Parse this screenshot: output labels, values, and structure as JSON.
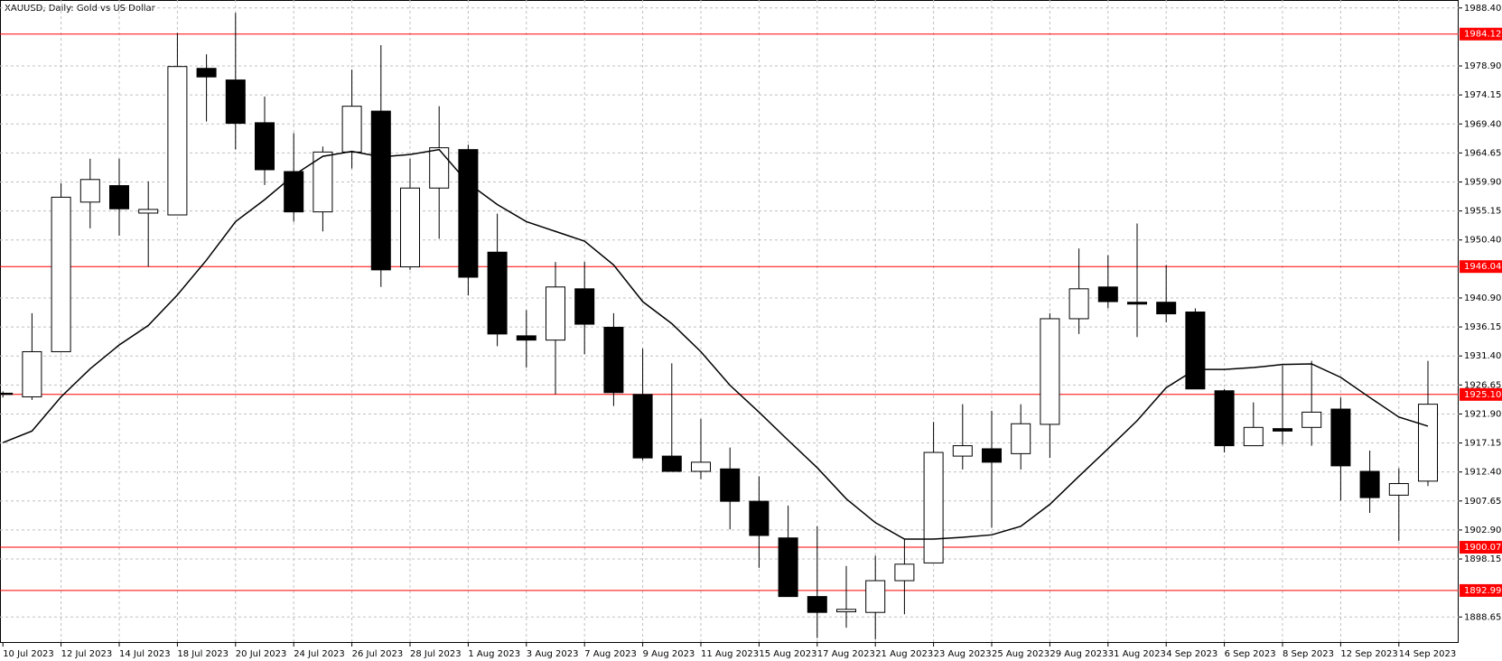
{
  "chart_data": {
    "type": "candlestick",
    "title": "XAUUSD, Daily:  Gold vs US Dollar",
    "categories": [
      "10 Jul 2023",
      null,
      "12 Jul 2023",
      null,
      "14 Jul 2023",
      null,
      "18 Jul 2023",
      null,
      "20 Jul 2023",
      null,
      "24 Jul 2023",
      null,
      "26 Jul 2023",
      null,
      "28 Jul 2023",
      null,
      "1 Aug 2023",
      null,
      "3 Aug 2023",
      null,
      "7 Aug 2023",
      null,
      "9 Aug 2023",
      null,
      "11 Aug 2023",
      null,
      "15 Aug 2023",
      null,
      "17 Aug 2023",
      null,
      "21 Aug 2023",
      null,
      "23 Aug 2023",
      null,
      "25 Aug 2023",
      null,
      "29 Aug 2023",
      null,
      "31 Aug 2023",
      null,
      "4 Sep 2023",
      null,
      "6 Sep 2023",
      null,
      "8 Sep 2023",
      null,
      "12 Sep 2023",
      null,
      "14 Sep 2023",
      null
    ],
    "open": [
      1925.3,
      1924.7,
      1932.1,
      1956.6,
      1959.3,
      1954.8,
      1954.5,
      1978.5,
      1976.6,
      1969.6,
      1961.6,
      1955.0,
      1964.8,
      1971.5,
      1946.0,
      1958.9,
      1965.2,
      1948.4,
      1934.7,
      1934.0,
      1942.4,
      1936.1,
      1925.1,
      1915.0,
      1912.5,
      1912.9,
      1907.6,
      1901.6,
      1892.0,
      1889.5,
      1889.4,
      1894.6,
      1897.5,
      1915.0,
      1916.2,
      1915.4,
      1920.2,
      1937.5,
      1942.7,
      1940.2,
      1940.2,
      1938.6,
      1925.7,
      1916.7,
      1919.5,
      1919.7,
      1922.7,
      1912.5,
      1908.6,
      1910.9
    ],
    "high": [
      1925.6,
      1938.4,
      1959.7,
      1963.7,
      1963.7,
      1960.0,
      1984.3,
      1980.8,
      1987.6,
      1973.9,
      1967.9,
      1965.7,
      1978.3,
      1982.3,
      1963.7,
      1972.3,
      1966.0,
      1954.7,
      1938.9,
      1946.8,
      1946.8,
      1938.4,
      1932.6,
      1930.2,
      1921.1,
      1916.4,
      1911.7,
      1906.9,
      1903.5,
      1897.0,
      1898.7,
      1901.4,
      1920.6,
      1923.5,
      1922.4,
      1923.5,
      1938.4,
      1949.0,
      1947.9,
      1953.1,
      1946.3,
      1939.2,
      1926.0,
      1923.8,
      1929.8,
      1930.6,
      1924.6,
      1915.9,
      1913.0,
      1930.6
    ],
    "low": [
      1924.6,
      1924.2,
      1932.1,
      1952.3,
      1951.1,
      1946.0,
      1954.5,
      1969.8,
      1965.2,
      1959.4,
      1953.4,
      1951.8,
      1962.1,
      1942.7,
      1945.5,
      1950.6,
      1941.3,
      1933.0,
      1929.5,
      1925.1,
      1931.7,
      1923.2,
      1914.3,
      1912.5,
      1911.2,
      1903.0,
      1896.7,
      1892.0,
      1885.2,
      1886.9,
      1885.0,
      1889.1,
      1897.5,
      1912.8,
      1903.3,
      1912.8,
      1914.7,
      1935.0,
      1939.2,
      1934.5,
      1936.9,
      1926.0,
      1915.6,
      1916.7,
      1916.9,
      1916.7,
      1907.7,
      1905.7,
      1901.1,
      1910.1
    ],
    "close": [
      1925.1,
      1932.1,
      1957.4,
      1960.3,
      1955.5,
      1955.4,
      1978.8,
      1977.1,
      1969.5,
      1961.9,
      1955.0,
      1964.8,
      1972.3,
      1945.5,
      1958.9,
      1965.5,
      1944.3,
      1935.0,
      1934.0,
      1942.7,
      1936.6,
      1925.4,
      1914.7,
      1912.5,
      1914.0,
      1907.6,
      1902.0,
      1892.0,
      1889.4,
      1889.9,
      1894.6,
      1897.3,
      1915.6,
      1916.7,
      1914.0,
      1920.3,
      1937.5,
      1942.4,
      1940.3,
      1939.9,
      1938.3,
      1926.0,
      1916.7,
      1919.7,
      1919.1,
      1922.2,
      1913.4,
      1908.2,
      1910.5,
      1923.5
    ],
    "ma": [
      1917.2,
      1919.1,
      1924.7,
      1929.3,
      1933.2,
      1936.4,
      1941.4,
      1947.1,
      1953.4,
      1957.0,
      1961.0,
      1964.1,
      1964.9,
      1964.0,
      1964.4,
      1965.2,
      1959.7,
      1956.2,
      1953.4,
      1951.8,
      1950.2,
      1946.3,
      1940.3,
      1936.7,
      1932.1,
      1926.6,
      1922.2,
      1917.6,
      1913.1,
      1908.0,
      1904.1,
      1901.4,
      1901.4,
      1901.7,
      1902.1,
      1903.5,
      1907.1,
      1911.7,
      1916.2,
      1920.8,
      1926.2,
      1929.2,
      1929.2,
      1929.5,
      1930.0,
      1930.1,
      1927.9,
      1924.6,
      1921.4,
      1919.9
    ],
    "up_color": "#ffffff",
    "down_color": "#000000",
    "level_color": "#ff0000",
    "levels": [
      1984.12,
      1946.04,
      {
        "value": 1925.1,
        "label": "1925.10"
      },
      1900.07,
      1892.99
    ],
    "ylim": [
      1884.4,
      1989.7
    ],
    "yticks": [
      1888.65,
      1898.15,
      {
        "value": 1902.9,
        "label": "1902.90"
      },
      1907.65,
      {
        "value": 1912.4,
        "label": "1912.40"
      },
      1917.15,
      {
        "value": 1921.9,
        "label": "1921.90"
      },
      1926.65,
      {
        "value": 1931.4,
        "label": "1931.40"
      },
      1936.15,
      {
        "value": 1940.9,
        "label": "1940.90"
      },
      {
        "value": 1950.4,
        "label": "1950.40"
      },
      1955.15,
      {
        "value": 1959.9,
        "label": "1959.90"
      },
      1964.65,
      {
        "value": 1969.4,
        "label": "1969.40"
      },
      1974.15,
      {
        "value": 1978.9,
        "label": "1978.90"
      },
      {
        "value": 1988.4,
        "label": "1988.40"
      }
    ],
    "grid": true
  }
}
